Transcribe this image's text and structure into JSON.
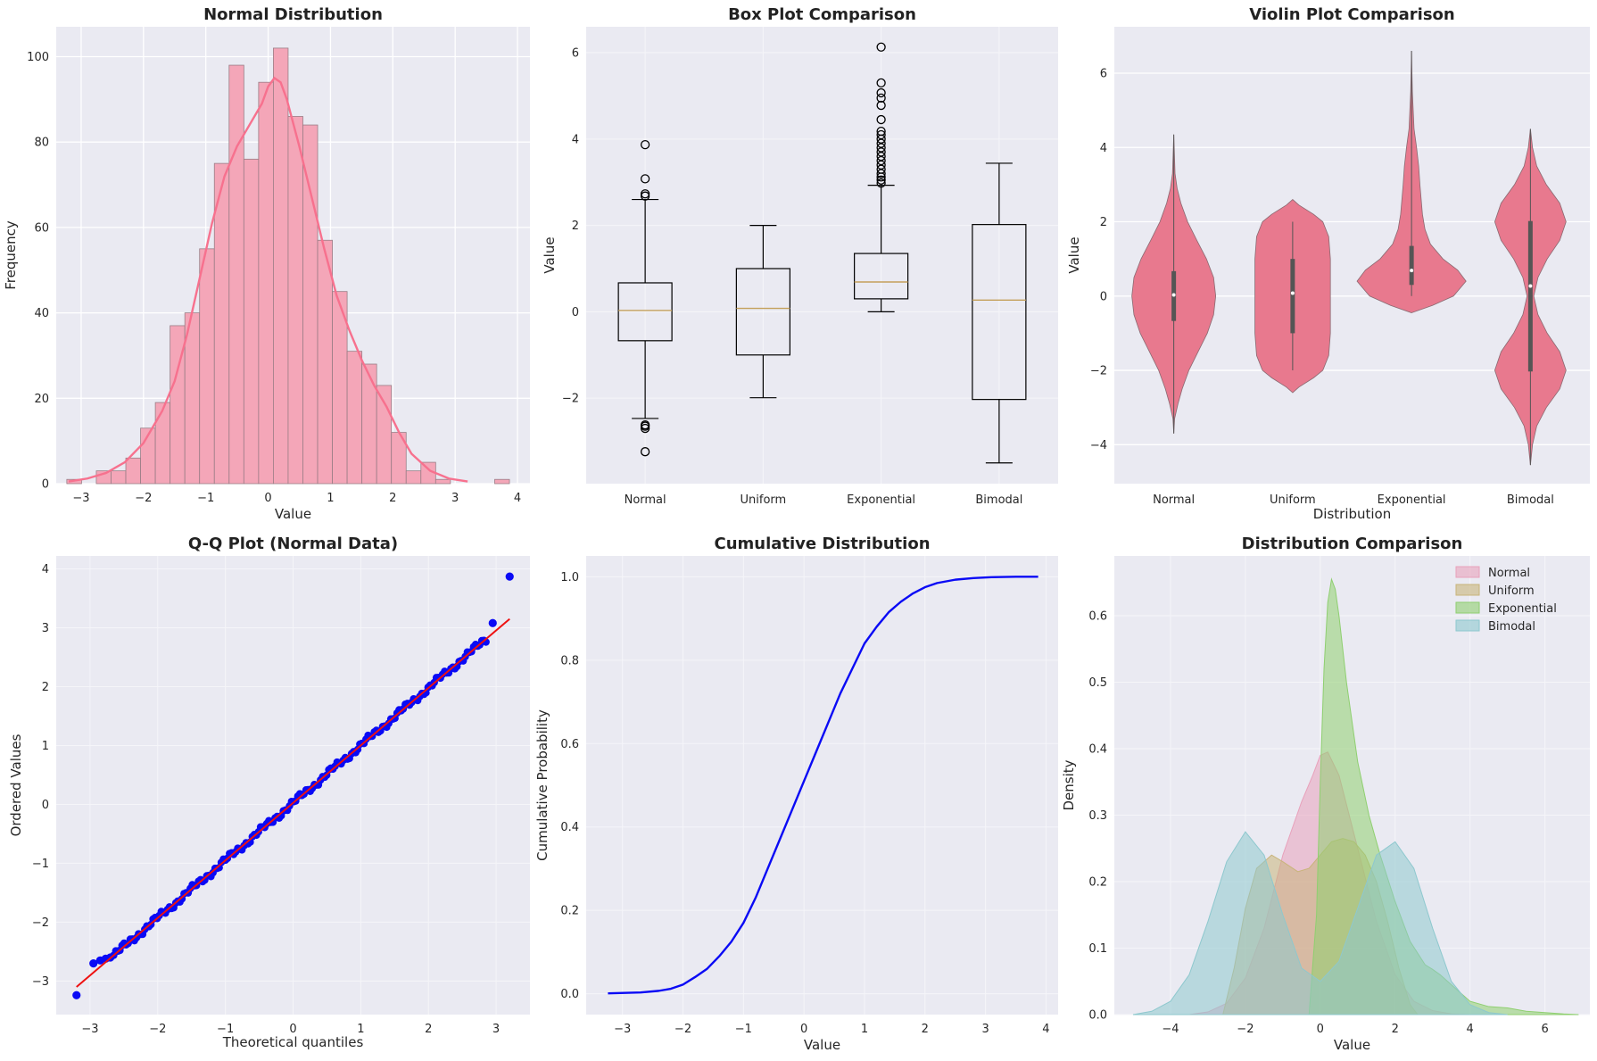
{
  "chart_data": [
    {
      "id": "hist",
      "type": "bar",
      "title": "Normal Distribution",
      "xlabel": "Value",
      "ylabel": "Frequency",
      "xlim": [
        -3.4,
        4.2
      ],
      "ylim": [
        0,
        107
      ],
      "xticks": [
        -3,
        -2,
        -1,
        0,
        1,
        2,
        3,
        4
      ],
      "yticks": [
        0,
        20,
        40,
        60,
        80,
        100
      ],
      "bins_start": -3.23,
      "bin_width": 0.2367,
      "values": [
        1,
        0,
        3,
        3,
        6,
        13,
        19,
        37,
        40,
        55,
        75,
        98,
        76,
        94,
        102,
        86,
        84,
        57,
        45,
        31,
        28,
        23,
        12,
        3,
        5,
        1,
        0,
        0,
        0,
        1
      ],
      "kde": {
        "x": [
          -3.2,
          -2.9,
          -2.6,
          -2.3,
          -2.0,
          -1.7,
          -1.5,
          -1.3,
          -1.1,
          -0.9,
          -0.7,
          -0.5,
          -0.3,
          -0.1,
          0.0,
          0.1,
          0.2,
          0.3,
          0.5,
          0.7,
          0.9,
          1.1,
          1.3,
          1.5,
          1.7,
          1.9,
          2.1,
          2.3,
          2.6,
          2.9,
          3.2
        ],
        "y": [
          0.5,
          1.2,
          2.5,
          5,
          9.5,
          17,
          24,
          35,
          48,
          61,
          72,
          79,
          84,
          89,
          93,
          95,
          94,
          90,
          79,
          67,
          55,
          44,
          36,
          29,
          23,
          18,
          12,
          7,
          3,
          1.2,
          0.5
        ]
      }
    },
    {
      "id": "box",
      "type": "box",
      "title": "Box Plot Comparison",
      "xlabel": "",
      "ylabel": "Value",
      "ylim": [
        -3.98,
        6.6
      ],
      "yticks": [
        -2,
        0,
        2,
        4,
        6
      ],
      "categories": [
        "Normal",
        "Uniform",
        "Exponential",
        "Bimodal"
      ],
      "boxes": [
        {
          "whislo": -2.47,
          "q1": -0.67,
          "med": 0.03,
          "q3": 0.67,
          "whishi": 2.6,
          "fliers": [
            3.87,
            3.08,
            2.73,
            2.68,
            -2.62,
            -2.65,
            -2.7,
            -3.24
          ]
        },
        {
          "whislo": -1.99,
          "q1": -1.0,
          "med": 0.08,
          "q3": 1.0,
          "whishi": 2.0,
          "fliers": []
        },
        {
          "whislo": 0.0,
          "q1": 0.3,
          "med": 0.69,
          "q3": 1.35,
          "whishi": 2.93,
          "fliers": [
            6.13,
            5.3,
            5.07,
            4.95,
            4.78,
            4.45,
            4.18,
            4.1,
            4.0,
            3.9,
            3.8,
            3.7,
            3.6,
            3.5,
            3.4,
            3.3,
            3.2,
            3.12,
            3.05,
            2.98
          ]
        },
        {
          "whislo": -3.5,
          "q1": -2.03,
          "med": 0.27,
          "q3": 2.02,
          "whishi": 3.44,
          "fliers": []
        }
      ]
    },
    {
      "id": "violin",
      "type": "violin",
      "title": "Violin Plot Comparison",
      "xlabel": "Distribution",
      "ylabel": "Value",
      "ylim": [
        -5.05,
        7.25
      ],
      "yticks": [
        -4,
        -2,
        0,
        2,
        4,
        6
      ],
      "categories": [
        "Normal",
        "Uniform",
        "Exponential",
        "Bimodal"
      ],
      "violins": [
        {
          "y": [
            -3.7,
            -3.3,
            -2.9,
            -2.5,
            -2.0,
            -1.5,
            -1.0,
            -0.5,
            0.0,
            0.5,
            1.0,
            1.5,
            2.0,
            2.5,
            2.9,
            3.3,
            4.0,
            4.35
          ],
          "w": [
            0.0,
            0.02,
            0.1,
            0.2,
            0.36,
            0.58,
            0.8,
            0.95,
            1.0,
            0.95,
            0.78,
            0.55,
            0.33,
            0.17,
            0.08,
            0.03,
            0.01,
            0.0
          ],
          "q1": -0.67,
          "q3": 0.67,
          "med": 0.03,
          "min": -3.7,
          "max": 4.35
        },
        {
          "y": [
            -2.6,
            -2.45,
            -2.2,
            -2.0,
            -1.6,
            -1.0,
            -0.5,
            0.0,
            0.5,
            1.0,
            1.6,
            2.0,
            2.2,
            2.45,
            2.6
          ],
          "w": [
            0.0,
            0.15,
            0.5,
            0.72,
            0.86,
            0.9,
            0.9,
            0.9,
            0.9,
            0.9,
            0.86,
            0.72,
            0.5,
            0.15,
            0.0
          ],
          "q1": -1.0,
          "q3": 1.0,
          "med": 0.08,
          "min": -2.0,
          "max": 2.0
        },
        {
          "y": [
            -0.45,
            -0.25,
            0.0,
            0.2,
            0.4,
            0.7,
            1.0,
            1.4,
            1.8,
            2.2,
            2.6,
            3.0,
            3.5,
            4.0,
            4.5,
            5.0,
            5.5,
            6.0,
            6.6
          ],
          "w": [
            0.0,
            0.5,
            1.0,
            1.15,
            1.3,
            1.1,
            0.75,
            0.45,
            0.32,
            0.26,
            0.23,
            0.2,
            0.17,
            0.12,
            0.06,
            0.04,
            0.02,
            0.01,
            0.0
          ],
          "q1": 0.3,
          "q3": 1.35,
          "med": 0.69,
          "min": 0.0,
          "max": 6.6
        },
        {
          "y": [
            -4.55,
            -4.0,
            -3.5,
            -3.0,
            -2.5,
            -2.0,
            -1.5,
            -1.0,
            -0.5,
            0.0,
            0.5,
            1.0,
            1.5,
            2.0,
            2.5,
            3.0,
            3.5,
            4.0,
            4.5
          ],
          "w": [
            0.0,
            0.05,
            0.15,
            0.38,
            0.7,
            0.85,
            0.7,
            0.4,
            0.18,
            0.08,
            0.18,
            0.4,
            0.7,
            0.85,
            0.7,
            0.38,
            0.15,
            0.05,
            0.0
          ],
          "q1": -2.03,
          "q3": 2.02,
          "med": 0.27,
          "min": -4.55,
          "max": 4.5
        }
      ]
    },
    {
      "id": "qq",
      "type": "scatter",
      "title": "Q-Q Plot (Normal Data)",
      "xlabel": "Theoretical quantiles",
      "ylabel": "Ordered Values",
      "xlim": [
        -3.5,
        3.5
      ],
      "ylim": [
        -3.57,
        4.22
      ],
      "xticks": [
        -3,
        -2,
        -1,
        0,
        1,
        2,
        3
      ],
      "yticks": [
        -3,
        -2,
        -1,
        0,
        1,
        2,
        3,
        4
      ],
      "fit_line": {
        "x": [
          -3.2,
          3.2
        ],
        "y": [
          -3.1,
          3.15
        ]
      },
      "outlier_points": {
        "x": [
          -3.2,
          -2.95,
          -2.85,
          -2.77,
          -2.7,
          2.95,
          3.2
        ],
        "y": [
          -3.24,
          -2.7,
          -2.65,
          -2.62,
          -2.6,
          3.08,
          3.87
        ]
      },
      "dense_range": [
        -2.65,
        2.85
      ]
    },
    {
      "id": "cdf",
      "type": "line",
      "title": "Cumulative Distribution",
      "xlabel": "Value",
      "ylabel": "Cumulative Probability",
      "xlim": [
        -3.6,
        4.2
      ],
      "ylim": [
        -0.05,
        1.05
      ],
      "xticks": [
        -3,
        -2,
        -1,
        0,
        1,
        2,
        3,
        4
      ],
      "yticks": [
        0.0,
        0.2,
        0.4,
        0.6,
        0.8,
        1.0
      ],
      "x": [
        -3.24,
        -2.7,
        -2.4,
        -2.2,
        -2.0,
        -1.8,
        -1.6,
        -1.4,
        -1.2,
        -1.0,
        -0.8,
        -0.6,
        -0.4,
        -0.2,
        0.0,
        0.2,
        0.4,
        0.6,
        0.8,
        1.0,
        1.2,
        1.4,
        1.6,
        1.8,
        2.0,
        2.2,
        2.5,
        2.8,
        3.1,
        3.5,
        3.87
      ],
      "y": [
        0.001,
        0.003,
        0.007,
        0.012,
        0.022,
        0.04,
        0.06,
        0.09,
        0.125,
        0.17,
        0.23,
        0.3,
        0.37,
        0.44,
        0.51,
        0.58,
        0.65,
        0.72,
        0.78,
        0.84,
        0.88,
        0.915,
        0.94,
        0.96,
        0.975,
        0.985,
        0.993,
        0.997,
        0.999,
        1.0,
        1.0
      ]
    },
    {
      "id": "kde",
      "type": "area",
      "title": "Distribution Comparison",
      "xlabel": "Value",
      "ylabel": "Density",
      "xlim": [
        -5.5,
        7.2
      ],
      "ylim": [
        0,
        0.69
      ],
      "xticks": [
        -4,
        -2,
        0,
        2,
        4,
        6
      ],
      "yticks": [
        0.0,
        0.1,
        0.2,
        0.3,
        0.4,
        0.5,
        0.6
      ],
      "legend_position": "top-right",
      "series": [
        {
          "name": "Normal",
          "color": "#e8a1bb",
          "x": [
            -3.5,
            -3.0,
            -2.5,
            -2.0,
            -1.5,
            -1.0,
            -0.5,
            -0.2,
            0.0,
            0.2,
            0.5,
            1.0,
            1.5,
            2.0,
            2.5,
            3.0,
            3.5,
            4.0
          ],
          "y": [
            0.0,
            0.004,
            0.017,
            0.055,
            0.13,
            0.24,
            0.32,
            0.36,
            0.39,
            0.395,
            0.36,
            0.25,
            0.14,
            0.06,
            0.02,
            0.006,
            0.001,
            0.0
          ]
        },
        {
          "name": "Uniform",
          "color": "#c8b47a",
          "x": [
            -2.6,
            -2.3,
            -2.0,
            -1.7,
            -1.3,
            -1.0,
            -0.6,
            -0.3,
            0.0,
            0.3,
            0.6,
            0.9,
            1.2,
            1.5,
            1.8,
            2.1,
            2.4,
            2.6
          ],
          "y": [
            0.0,
            0.07,
            0.16,
            0.22,
            0.24,
            0.23,
            0.215,
            0.22,
            0.24,
            0.26,
            0.265,
            0.26,
            0.24,
            0.2,
            0.14,
            0.07,
            0.015,
            0.0
          ]
        },
        {
          "name": "Exponential",
          "color": "#8fcf70",
          "x": [
            -0.3,
            -0.1,
            0.0,
            0.1,
            0.2,
            0.3,
            0.4,
            0.5,
            0.7,
            1.0,
            1.3,
            1.6,
            2.0,
            2.4,
            2.8,
            3.0,
            3.2,
            3.6,
            4.0,
            4.5,
            5.0,
            5.5,
            6.0,
            6.5,
            6.9
          ],
          "y": [
            0.0,
            0.15,
            0.35,
            0.52,
            0.62,
            0.655,
            0.64,
            0.6,
            0.5,
            0.38,
            0.3,
            0.24,
            0.17,
            0.11,
            0.075,
            0.068,
            0.06,
            0.04,
            0.02,
            0.012,
            0.01,
            0.005,
            0.003,
            0.001,
            0.0
          ]
        },
        {
          "name": "Bimodal",
          "color": "#8ec8ce",
          "x": [
            -5.0,
            -4.5,
            -4.0,
            -3.5,
            -3.0,
            -2.5,
            -2.0,
            -1.5,
            -1.0,
            -0.5,
            0.0,
            0.5,
            1.0,
            1.5,
            2.0,
            2.5,
            3.0,
            3.5,
            4.0,
            4.5,
            5.0
          ],
          "y": [
            0.0,
            0.005,
            0.02,
            0.06,
            0.14,
            0.23,
            0.275,
            0.24,
            0.15,
            0.07,
            0.05,
            0.08,
            0.16,
            0.24,
            0.26,
            0.22,
            0.13,
            0.05,
            0.015,
            0.003,
            0.0
          ]
        }
      ]
    }
  ]
}
